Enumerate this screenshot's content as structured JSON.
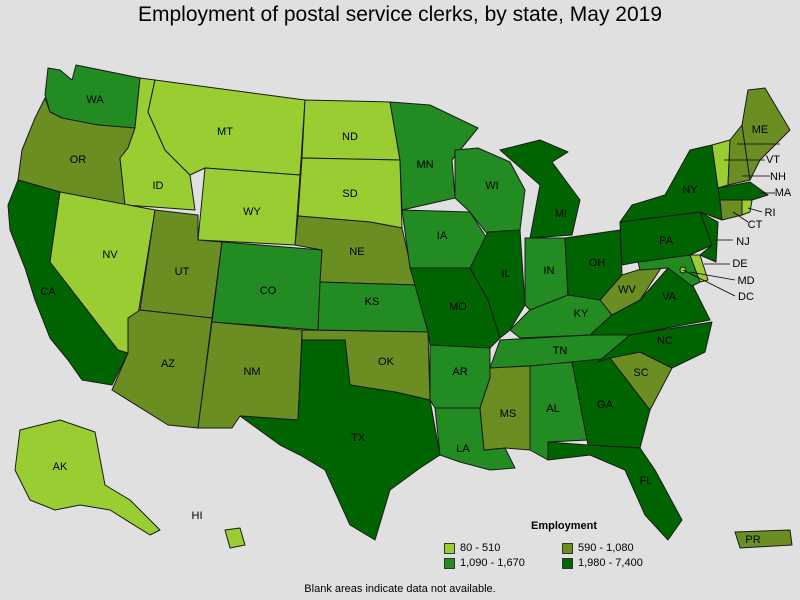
{
  "title": "Employment of postal service clerks, by state, May 2019",
  "legend": {
    "title": "Employment",
    "items": [
      {
        "label": "80 - 510",
        "color": "#9acd32"
      },
      {
        "label": "590 - 1,080",
        "color": "#6b8e23"
      },
      {
        "label": "1,090 - 1,670",
        "color": "#228b22"
      },
      {
        "label": "1,980 - 7,400",
        "color": "#006400"
      }
    ]
  },
  "note": "Blank areas indicate data not available.",
  "states": [
    {
      "abbr": "WA",
      "class": 2
    },
    {
      "abbr": "OR",
      "class": 1
    },
    {
      "abbr": "CA",
      "class": 3
    },
    {
      "abbr": "ID",
      "class": 0
    },
    {
      "abbr": "NV",
      "class": 0
    },
    {
      "abbr": "MT",
      "class": 0
    },
    {
      "abbr": "WY",
      "class": 0
    },
    {
      "abbr": "UT",
      "class": 1
    },
    {
      "abbr": "AZ",
      "class": 1
    },
    {
      "abbr": "CO",
      "class": 2
    },
    {
      "abbr": "NM",
      "class": 1
    },
    {
      "abbr": "ND",
      "class": 0
    },
    {
      "abbr": "SD",
      "class": 0
    },
    {
      "abbr": "NE",
      "class": 1
    },
    {
      "abbr": "KS",
      "class": 2
    },
    {
      "abbr": "OK",
      "class": 1
    },
    {
      "abbr": "TX",
      "class": 3
    },
    {
      "abbr": "MN",
      "class": 2
    },
    {
      "abbr": "IA",
      "class": 2
    },
    {
      "abbr": "MO",
      "class": 3
    },
    {
      "abbr": "AR",
      "class": 2
    },
    {
      "abbr": "LA",
      "class": 2
    },
    {
      "abbr": "WI",
      "class": 2
    },
    {
      "abbr": "IL",
      "class": 3
    },
    {
      "abbr": "MS",
      "class": 1
    },
    {
      "abbr": "MI",
      "class": 3
    },
    {
      "abbr": "IN",
      "class": 2
    },
    {
      "abbr": "KY",
      "class": 2
    },
    {
      "abbr": "TN",
      "class": 2
    },
    {
      "abbr": "AL",
      "class": 2
    },
    {
      "abbr": "OH",
      "class": 3
    },
    {
      "abbr": "GA",
      "class": 3
    },
    {
      "abbr": "FL",
      "class": 3
    },
    {
      "abbr": "SC",
      "class": 1
    },
    {
      "abbr": "NC",
      "class": 3
    },
    {
      "abbr": "VA",
      "class": 3
    },
    {
      "abbr": "WV",
      "class": 1
    },
    {
      "abbr": "PA",
      "class": 3
    },
    {
      "abbr": "NY",
      "class": 3
    },
    {
      "abbr": "VT",
      "class": 0
    },
    {
      "abbr": "NH",
      "class": 1
    },
    {
      "abbr": "ME",
      "class": 1
    },
    {
      "abbr": "MA",
      "class": 3
    },
    {
      "abbr": "RI",
      "class": 0
    },
    {
      "abbr": "CT",
      "class": 1
    },
    {
      "abbr": "NJ",
      "class": 3
    },
    {
      "abbr": "DE",
      "class": 0
    },
    {
      "abbr": "MD",
      "class": 2
    },
    {
      "abbr": "DC",
      "class": 0
    },
    {
      "abbr": "AK",
      "class": 0
    },
    {
      "abbr": "HI",
      "class": 0
    },
    {
      "abbr": "PR",
      "class": 1
    }
  ]
}
